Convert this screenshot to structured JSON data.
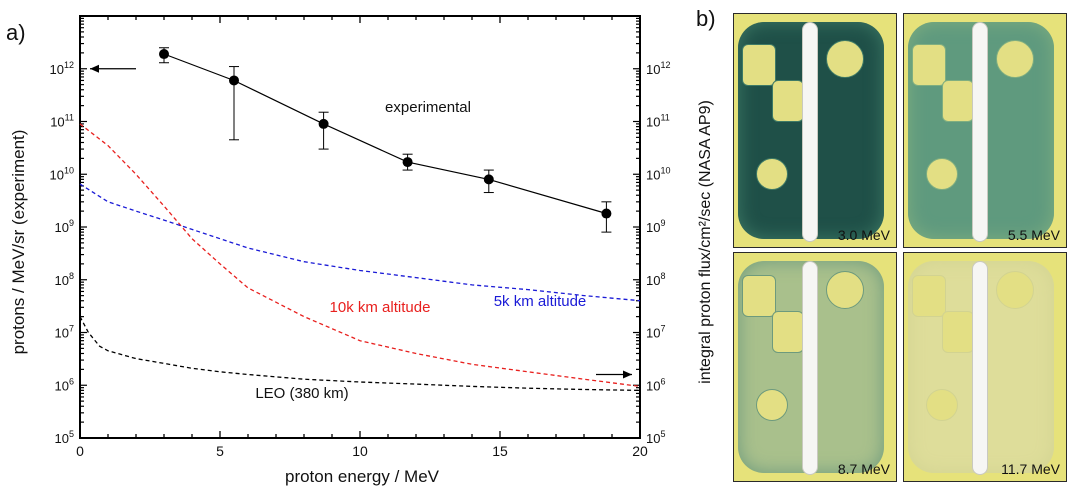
{
  "panel_a": {
    "label": "a)",
    "chart_data": {
      "type": "line",
      "xlabel": "proton energy / MeV",
      "ylabel_left": "protons / MeV/sr (experiment)",
      "ylabel_right": "integral proton flux/cm²/sec (NASA AP9)",
      "xlim": [
        0,
        20
      ],
      "ylim": [
        100000,
        10000000000000
      ],
      "yscale": "log",
      "x_ticks": [
        "0",
        "5",
        "10",
        "15",
        "20"
      ],
      "y_ticks_exp": [
        "5",
        "6",
        "7",
        "8",
        "9",
        "10",
        "11",
        "12"
      ],
      "series": [
        {
          "name": "experimental",
          "color": "#000000",
          "style": "solid-markers",
          "x": [
            3.0,
            5.5,
            8.7,
            11.7,
            14.6,
            18.8
          ],
          "y": [
            1900000000000.0,
            600000000000.0,
            90000000000.0,
            17000000000.0,
            8000000000.0,
            1800000000.0
          ],
          "y_err_low": [
            1300000000000.0,
            45000000000.0,
            30000000000.0,
            12000000000.0,
            4500000000.0,
            800000000.0
          ],
          "y_err_high": [
            2500000000000.0,
            1100000000000.0,
            150000000000.0,
            24000000000.0,
            12000000000.0,
            3000000000.0
          ]
        },
        {
          "name": "10k km altitude",
          "color": "#e8201e",
          "style": "dashed",
          "x": [
            0,
            1,
            2,
            3,
            4,
            5,
            6,
            8,
            10,
            12,
            14,
            16,
            18,
            20
          ],
          "y": [
            90000000000.0,
            35000000000.0,
            10000000000.0,
            2500000000.0,
            600000000.0,
            200000000.0,
            70000000.0,
            20000000.0,
            7000000.0,
            4000000.0,
            2500000.0,
            1800000.0,
            1300000.0,
            950000.0
          ]
        },
        {
          "name": "5k km altitude",
          "color": "#1a1ad6",
          "style": "dashed",
          "x": [
            0,
            1,
            2,
            3,
            4,
            5,
            6,
            8,
            10,
            12,
            14,
            16,
            18,
            20
          ],
          "y": [
            6500000000.0,
            3000000000.0,
            2000000000.0,
            1350000000.0,
            900000000.0,
            600000000.0,
            400000000.0,
            220000000.0,
            150000000.0,
            110000000.0,
            80000000.0,
            65000000.0,
            50000000.0,
            40000000.0
          ]
        },
        {
          "name": "LEO (380 km)",
          "color": "#000000",
          "style": "dashed",
          "x": [
            0,
            0.3,
            0.7,
            1,
            2,
            3,
            4,
            5,
            6,
            8,
            10,
            12,
            14,
            16,
            18,
            20
          ],
          "y": [
            20000000.0,
            10000000.0,
            5500000.0,
            4500000.0,
            3200000.0,
            2600000.0,
            2100000.0,
            1800000.0,
            1600000.0,
            1300000.0,
            1150000.0,
            1050000.0,
            950000.0,
            880000.0,
            830000.0,
            800000.0
          ]
        }
      ]
    }
  },
  "panel_b": {
    "label": "b)",
    "images": [
      {
        "energy_label": "3.0 MeV",
        "film_color": "#1f5048",
        "halo_color": "#3e7a66"
      },
      {
        "energy_label": "5.5 MeV",
        "film_color": "#5f9a7e",
        "halo_color": "#7fae80"
      },
      {
        "energy_label": "8.7 MeV",
        "film_color": "#a9c08c",
        "halo_color": "#6d9a7d"
      },
      {
        "energy_label": "11.7 MeV",
        "film_color": "#dedd9a",
        "halo_color": "#d2d391"
      }
    ]
  }
}
